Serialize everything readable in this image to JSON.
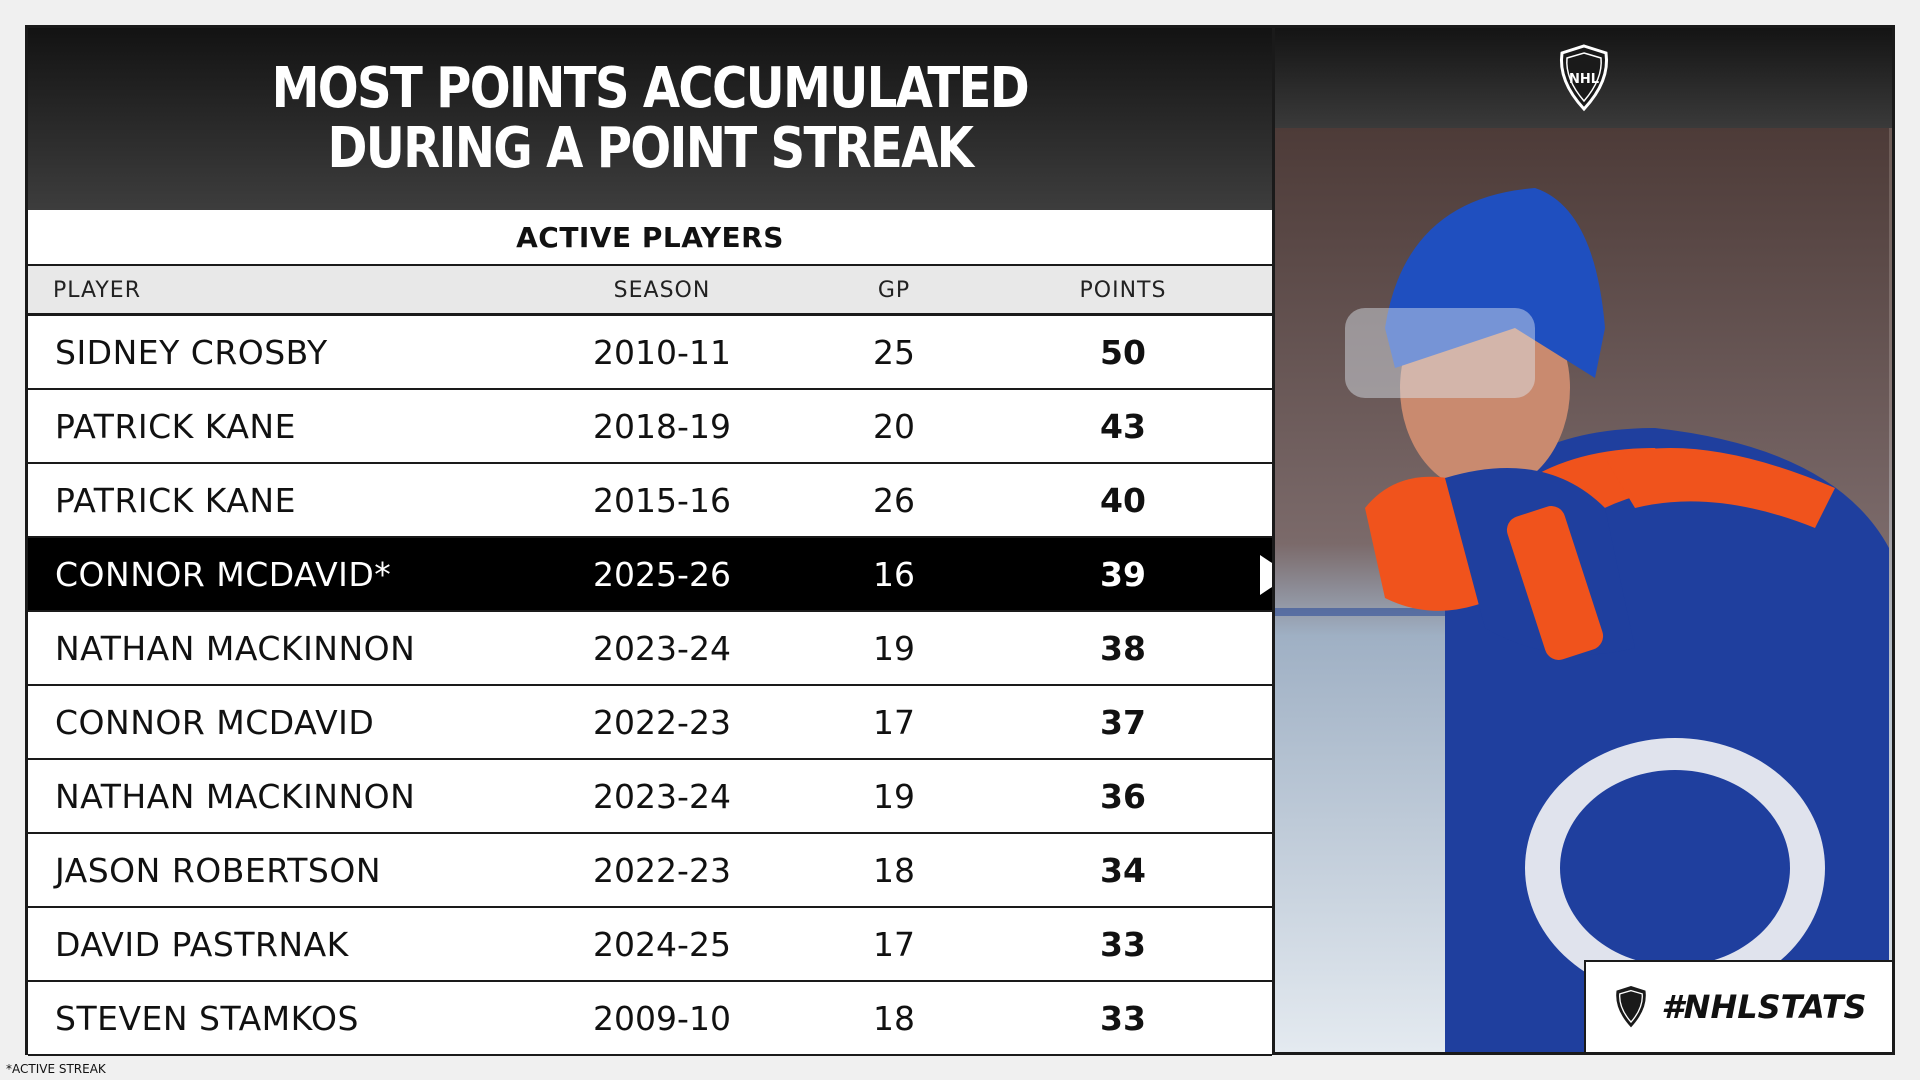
{
  "header": {
    "title_line1": "MOST POINTS ACCUMULATED",
    "title_line2": "DURING A POINT STREAK",
    "subtitle": "ACTIVE PLAYERS"
  },
  "chart_data": {
    "type": "table",
    "title": "MOST POINTS ACCUMULATED DURING A POINT STREAK",
    "subtitle": "ACTIVE PLAYERS",
    "columns": [
      "PLAYER",
      "SEASON",
      "GP",
      "POINTS"
    ],
    "rows": [
      {
        "player": "SIDNEY CROSBY",
        "season": "2010-11",
        "gp": "25",
        "points": "50",
        "highlight": false
      },
      {
        "player": "PATRICK KANE",
        "season": "2018-19",
        "gp": "20",
        "points": "43",
        "highlight": false
      },
      {
        "player": "PATRICK KANE",
        "season": "2015-16",
        "gp": "26",
        "points": "40",
        "highlight": false
      },
      {
        "player": "CONNOR MCDAVID*",
        "season": "2025-26",
        "gp": "16",
        "points": "39",
        "highlight": true
      },
      {
        "player": "NATHAN MACKINNON",
        "season": "2023-24",
        "gp": "19",
        "points": "38",
        "highlight": false
      },
      {
        "player": "CONNOR MCDAVID",
        "season": "2022-23",
        "gp": "17",
        "points": "37",
        "highlight": false
      },
      {
        "player": "NATHAN MACKINNON",
        "season": "2023-24",
        "gp": "19",
        "points": "36",
        "highlight": false
      },
      {
        "player": "JASON ROBERTSON",
        "season": "2022-23",
        "gp": "18",
        "points": "34",
        "highlight": false
      },
      {
        "player": "DAVID PASTRNAK",
        "season": "2024-25",
        "gp": "17",
        "points": "33",
        "highlight": false
      },
      {
        "player": "STEVEN STAMKOS",
        "season": "2009-10",
        "gp": "18",
        "points": "33",
        "highlight": false
      }
    ]
  },
  "branding": {
    "logo_text": "NHL",
    "hashtag": "#NHLSTATS"
  },
  "footnote": "*ACTIVE STREAK",
  "colors": {
    "highlight_row": "#000000",
    "header_dark": "#1a1a1a",
    "column_header_bg": "#e8e8e8",
    "jersey_blue": "#1f3f9e",
    "jersey_orange": "#f0531c"
  }
}
